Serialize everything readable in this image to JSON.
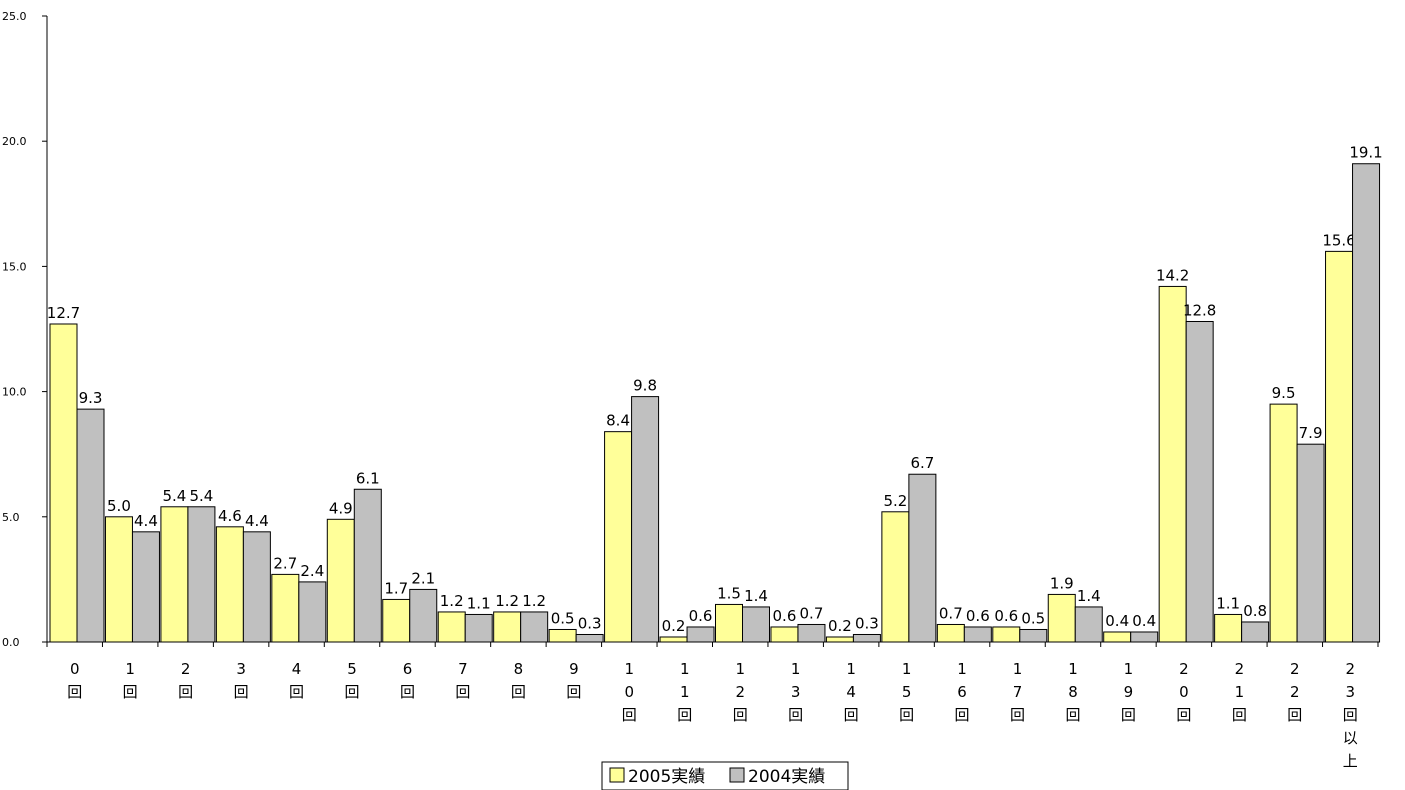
{
  "chart_data": {
    "type": "bar",
    "title": "",
    "xlabel": "",
    "ylabel": "",
    "ylim": [
      0,
      25
    ],
    "yticks": [
      "0.0",
      "5.0",
      "10.0",
      "15.0",
      "20.0",
      "25.0"
    ],
    "grid": false,
    "legend_position": "bottom",
    "categories": [
      [
        "0",
        "回"
      ],
      [
        "1",
        "回"
      ],
      [
        "2",
        "回"
      ],
      [
        "3",
        "回"
      ],
      [
        "4",
        "回"
      ],
      [
        "5",
        "回"
      ],
      [
        "6",
        "回"
      ],
      [
        "7",
        "回"
      ],
      [
        "8",
        "回"
      ],
      [
        "9",
        "回"
      ],
      [
        "1",
        "0",
        "回"
      ],
      [
        "1",
        "1",
        "回"
      ],
      [
        "1",
        "2",
        "回"
      ],
      [
        "1",
        "3",
        "回"
      ],
      [
        "1",
        "4",
        "回"
      ],
      [
        "1",
        "5",
        "回"
      ],
      [
        "1",
        "6",
        "回"
      ],
      [
        "1",
        "7",
        "回"
      ],
      [
        "1",
        "8",
        "回"
      ],
      [
        "1",
        "9",
        "回"
      ],
      [
        "2",
        "0",
        "回"
      ],
      [
        "2",
        "1",
        "回"
      ],
      [
        "2",
        "2",
        "回"
      ],
      [
        "2",
        "3",
        "回",
        "以",
        "上"
      ]
    ],
    "series": [
      {
        "name": "2005実績",
        "color": "#FFFF99",
        "values": [
          12.7,
          5.0,
          5.4,
          4.6,
          2.7,
          4.9,
          1.7,
          1.2,
          1.2,
          0.5,
          8.4,
          0.2,
          1.5,
          0.6,
          0.2,
          5.2,
          0.7,
          0.6,
          1.9,
          0.4,
          14.2,
          1.1,
          9.5,
          15.6
        ]
      },
      {
        "name": "2004実績",
        "color": "#C0C0C0",
        "values": [
          9.3,
          4.4,
          5.4,
          4.4,
          2.4,
          6.1,
          2.1,
          1.1,
          1.2,
          0.3,
          9.8,
          0.6,
          1.4,
          0.7,
          0.3,
          6.7,
          0.6,
          0.5,
          1.4,
          0.4,
          12.8,
          0.8,
          7.9,
          19.1
        ]
      }
    ]
  }
}
